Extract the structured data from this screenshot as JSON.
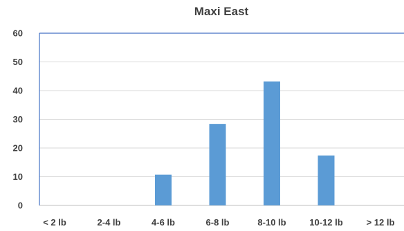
{
  "chart_data": {
    "type": "bar",
    "title": "Maxi East",
    "categories": [
      "< 2 lb",
      "2-4 lb",
      "4-6 lb",
      "6-8 lb",
      "8-10 lb",
      "10-12 lb",
      "> 12 lb"
    ],
    "values": [
      0,
      0,
      10.7,
      28.4,
      43.2,
      17.4,
      0
    ],
    "xlabel": "",
    "ylabel": "",
    "ylim": [
      0,
      60
    ],
    "yticks": [
      "0",
      "10",
      "20",
      "30",
      "40",
      "50",
      "60"
    ],
    "grid": true,
    "bar_color": "#5b9bd5",
    "grid_color": "#d9d9d9",
    "axis_color": "#4472c4"
  }
}
